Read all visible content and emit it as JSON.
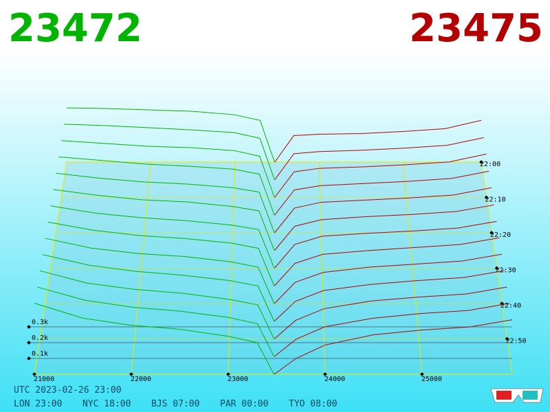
{
  "chart_data": {
    "type": "depth3d",
    "bid_price": "23472",
    "ask_price": "23475",
    "bid_color": "#00b400",
    "ask_color": "#b40000",
    "xlim": [
      21000,
      25930
    ],
    "xticks": [
      21000,
      22000,
      23000,
      24000,
      25000
    ],
    "tlim": [
      0,
      60
    ],
    "tticks": [
      {
        "value": 0,
        "label": "22:00"
      },
      {
        "value": 10,
        "label": "22:10"
      },
      {
        "value": 20,
        "label": "22:20"
      },
      {
        "value": 30,
        "label": "22:30"
      },
      {
        "value": 40,
        "label": "22:40"
      },
      {
        "value": 50,
        "label": "22:50"
      }
    ],
    "zticks": [
      {
        "value": 100,
        "label": "0.1k"
      },
      {
        "value": 200,
        "label": "0.2k"
      },
      {
        "value": 300,
        "label": "0.3k"
      }
    ],
    "bid_prices": [
      21000,
      21500,
      22000,
      22500,
      23000,
      23300,
      23472
    ],
    "ask_prices": [
      23475,
      23700,
      24000,
      24500,
      25000,
      25500,
      25930
    ],
    "snapshots": [
      {
        "t": 0,
        "bids": [
          390,
          385,
          375,
          365,
          340,
          300,
          0
        ],
        "asks": [
          0,
          190,
          200,
          205,
          220,
          240,
          300
        ]
      },
      {
        "t": 5,
        "bids": [
          395,
          385,
          370,
          355,
          335,
          295,
          0
        ],
        "asks": [
          0,
          185,
          200,
          210,
          225,
          245,
          300
        ]
      },
      {
        "t": 10,
        "bids": [
          400,
          380,
          360,
          350,
          330,
          290,
          0
        ],
        "asks": [
          0,
          180,
          205,
          215,
          230,
          250,
          305
        ]
      },
      {
        "t": 15,
        "bids": [
          405,
          380,
          355,
          340,
          320,
          285,
          0
        ],
        "asks": [
          0,
          175,
          205,
          220,
          235,
          255,
          305
        ]
      },
      {
        "t": 20,
        "bids": [
          410,
          375,
          350,
          335,
          310,
          280,
          0
        ],
        "asks": [
          0,
          170,
          210,
          225,
          240,
          260,
          310
        ]
      },
      {
        "t": 25,
        "bids": [
          415,
          375,
          345,
          330,
          300,
          270,
          0
        ],
        "asks": [
          0,
          165,
          210,
          230,
          245,
          265,
          310
        ]
      },
      {
        "t": 30,
        "bids": [
          420,
          370,
          340,
          320,
          290,
          260,
          0
        ],
        "asks": [
          0,
          160,
          215,
          235,
          250,
          270,
          315
        ]
      },
      {
        "t": 35,
        "bids": [
          425,
          370,
          335,
          315,
          285,
          250,
          0
        ],
        "asks": [
          0,
          150,
          210,
          235,
          255,
          275,
          320
        ]
      },
      {
        "t": 40,
        "bids": [
          430,
          365,
          330,
          310,
          275,
          240,
          0
        ],
        "asks": [
          0,
          140,
          205,
          240,
          260,
          280,
          325
        ]
      },
      {
        "t": 45,
        "bids": [
          435,
          365,
          325,
          300,
          265,
          230,
          0
        ],
        "asks": [
          0,
          130,
          200,
          240,
          265,
          285,
          330
        ]
      },
      {
        "t": 50,
        "bids": [
          440,
          360,
          320,
          295,
          255,
          220,
          0
        ],
        "asks": [
          0,
          120,
          195,
          245,
          270,
          290,
          335
        ]
      },
      {
        "t": 55,
        "bids": [
          445,
          360,
          315,
          290,
          250,
          210,
          0
        ],
        "asks": [
          0,
          110,
          190,
          245,
          275,
          295,
          340
        ]
      },
      {
        "t": 60,
        "bids": [
          450,
          355,
          310,
          285,
          240,
          200,
          0
        ],
        "asks": [
          0,
          100,
          185,
          250,
          280,
          300,
          345
        ]
      }
    ],
    "utc": "UTC 2023-02-26 23:00",
    "zones": [
      "LON 23:00",
      "NYC 18:00",
      "BJS 07:00",
      "PAR 00:00",
      "TYO 08:00"
    ]
  }
}
